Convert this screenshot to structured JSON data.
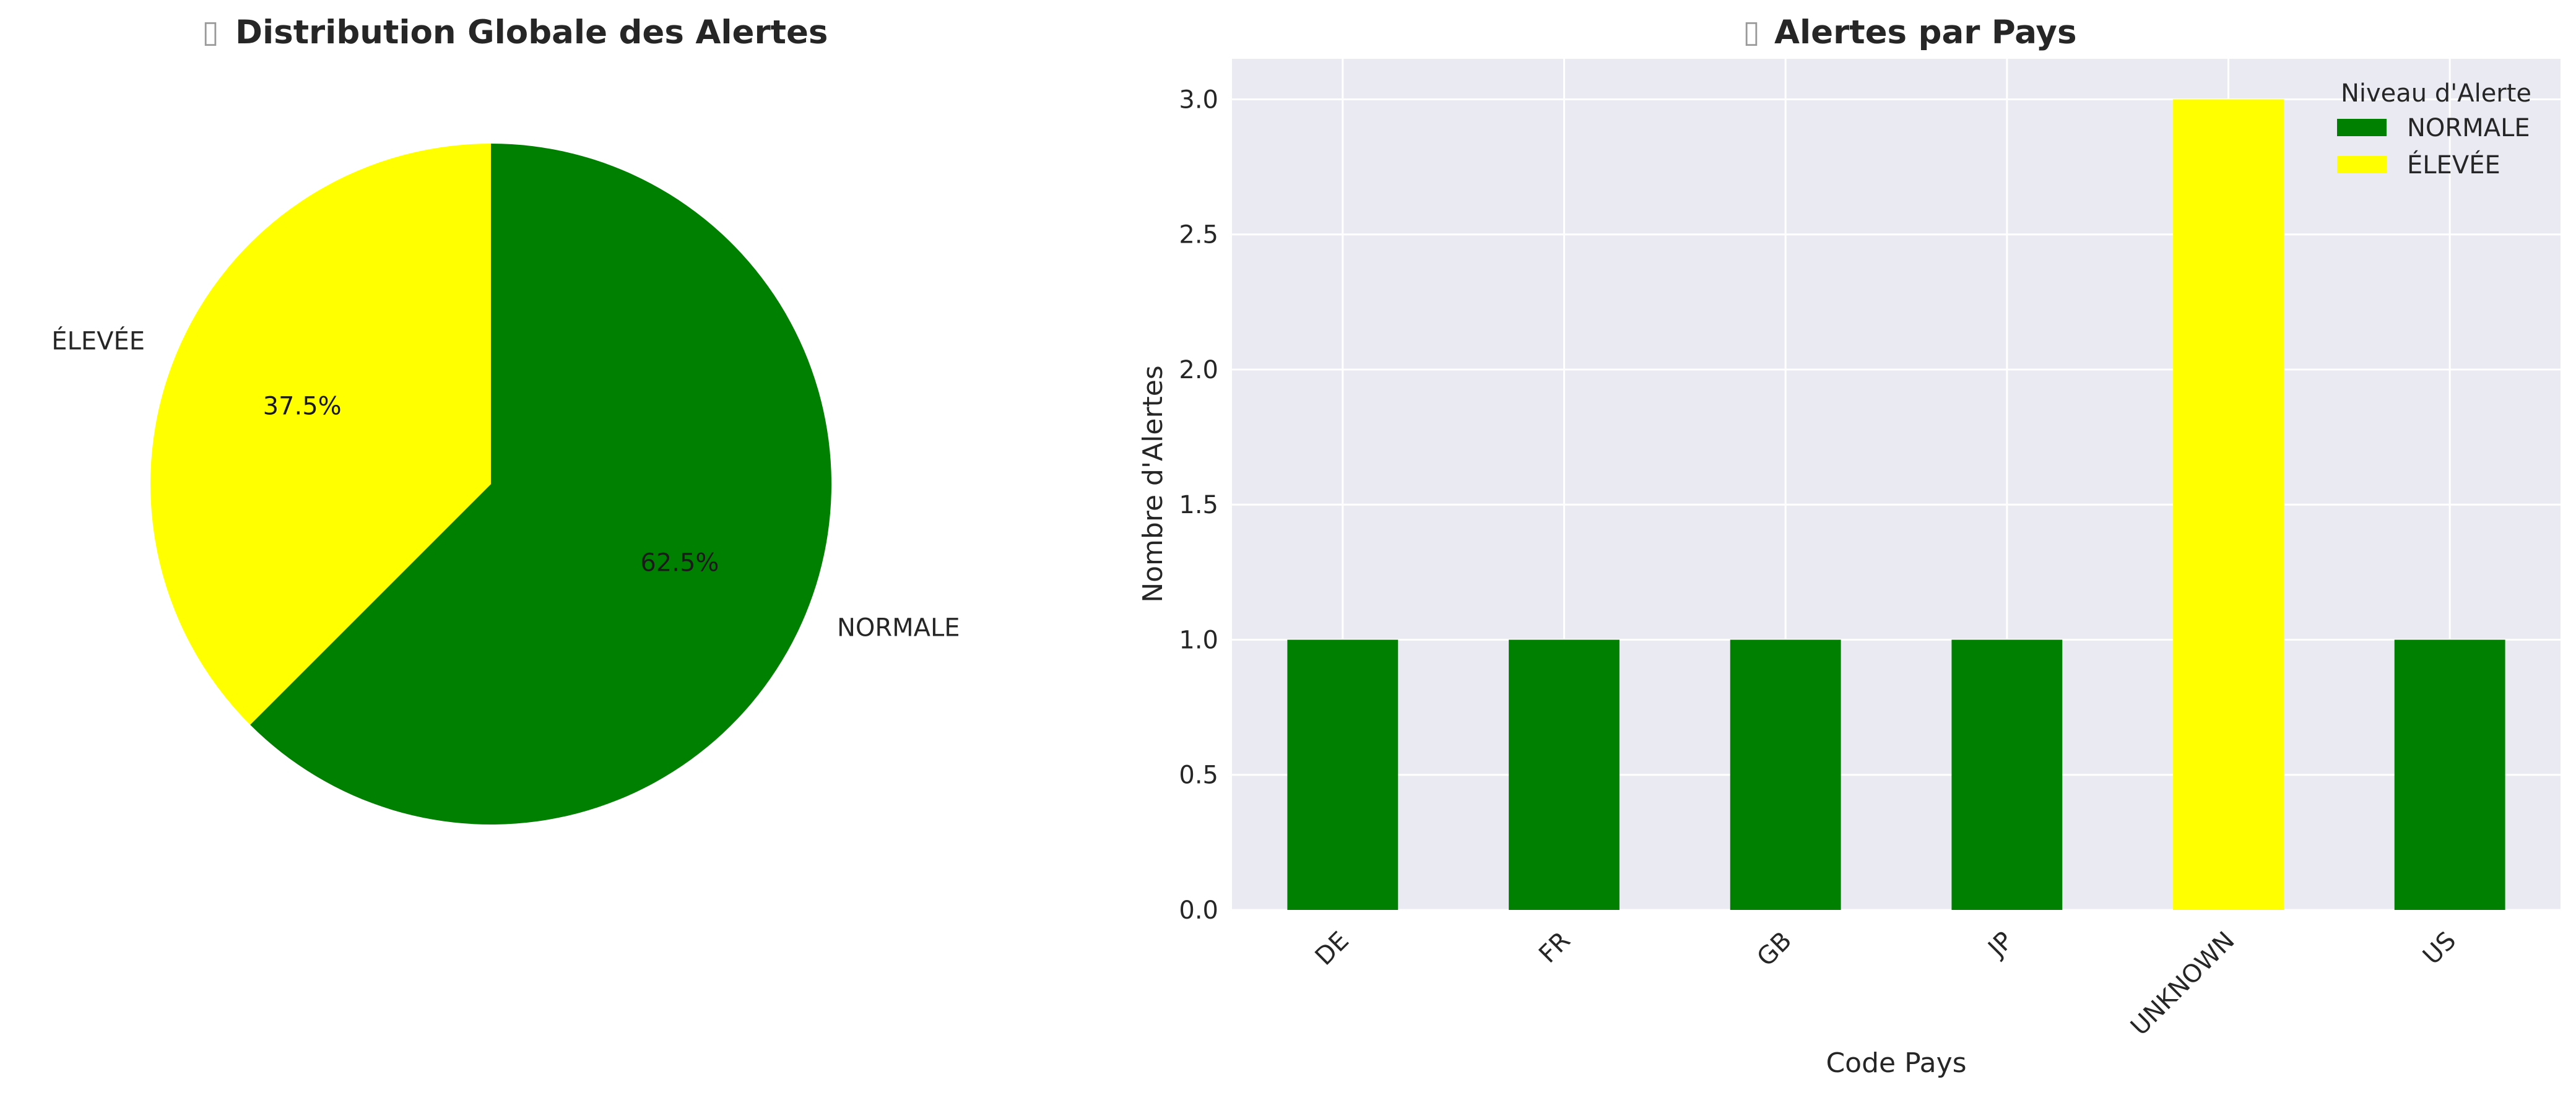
{
  "chart_data": [
    {
      "type": "pie",
      "title": "Distribution Globale des Alertes",
      "title_icon": "missing-glyph",
      "slices": [
        {
          "label": "NORMALE",
          "value": 62.5,
          "pct_label": "62.5%",
          "color": "#008000"
        },
        {
          "label": "ÉLEVÉE",
          "value": 37.5,
          "pct_label": "37.5%",
          "color": "#ffff00"
        }
      ],
      "start_angle_deg": 90,
      "direction": "clockwise"
    },
    {
      "type": "bar",
      "stacked": true,
      "title": "Alertes par Pays",
      "title_icon": "missing-glyph",
      "xlabel": "Code Pays",
      "ylabel": "Nombre d'Alertes",
      "categories": [
        "DE",
        "FR",
        "GB",
        "JP",
        "UNKNOWN",
        "US"
      ],
      "series": [
        {
          "name": "NORMALE",
          "color": "#008000",
          "values": [
            1,
            1,
            1,
            1,
            0,
            1
          ]
        },
        {
          "name": "ÉLEVÉE",
          "color": "#ffff00",
          "values": [
            0,
            0,
            0,
            0,
            3,
            0
          ]
        }
      ],
      "ylim": [
        0,
        3.15
      ],
      "yticks": [
        0.0,
        0.5,
        1.0,
        1.5,
        2.0,
        2.5,
        3.0
      ],
      "ytick_labels": [
        "0.0",
        "0.5",
        "1.0",
        "1.5",
        "2.0",
        "2.5",
        "3.0"
      ],
      "legend": {
        "title": "Niveau d'Alerte",
        "placement": "top-right"
      },
      "grid": true,
      "background": "#eaeaf2"
    }
  ]
}
